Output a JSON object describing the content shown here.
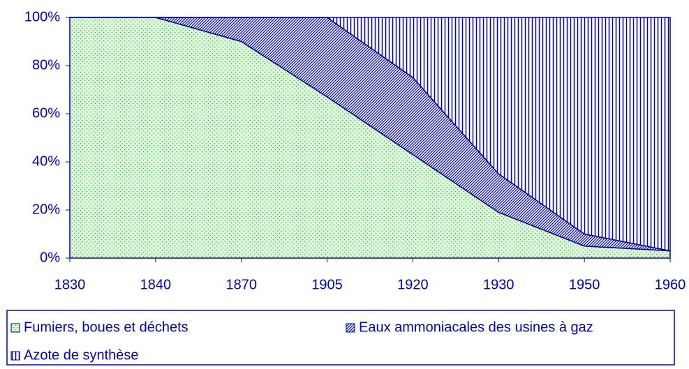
{
  "chart_data": {
    "type": "stacked_area",
    "categories": [
      "1830",
      "1840",
      "1870",
      "1905",
      "1920",
      "1930",
      "1950",
      "1960"
    ],
    "series": [
      {
        "name": "Fumiers, boues et déchets",
        "color": "#33bb33",
        "pattern": "dots",
        "values": [
          100,
          100,
          90,
          67,
          43,
          19,
          5,
          3
        ]
      },
      {
        "name": "Eaux ammoniacales des usines à gaz",
        "color": "#0000cc",
        "pattern": "diagonal",
        "values": [
          0,
          0,
          10,
          33,
          32,
          16,
          5,
          0
        ]
      },
      {
        "name": "Azote de synthèse",
        "color": "#0000cc",
        "pattern": "vertical",
        "values": [
          0,
          0,
          0,
          0,
          25,
          65,
          90,
          97
        ]
      }
    ],
    "ylim": [
      0,
      100
    ],
    "yticks": [
      {
        "value": 0,
        "label": "0%"
      },
      {
        "value": 20,
        "label": "20%"
      },
      {
        "value": 40,
        "label": "40%"
      },
      {
        "value": 60,
        "label": "60%"
      },
      {
        "value": 80,
        "label": "80%"
      },
      {
        "value": 100,
        "label": "100%"
      }
    ],
    "legend": "bottom"
  }
}
